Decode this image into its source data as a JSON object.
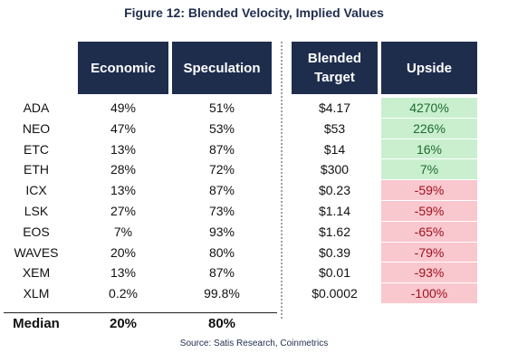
{
  "title": "Figure 12: Blended Velocity, Implied Values",
  "headers": {
    "economic": "Economic",
    "speculation": "Speculation",
    "blended_target_line1": "Blended",
    "blended_target_line2": "Target",
    "upside": "Upside"
  },
  "rows": [
    {
      "name": "ADA",
      "economic": "49%",
      "speculation": "51%",
      "target": "$4.17",
      "upside": "4270%",
      "sign": "pos"
    },
    {
      "name": "NEO",
      "economic": "47%",
      "speculation": "53%",
      "target": "$53",
      "upside": "226%",
      "sign": "pos"
    },
    {
      "name": "ETC",
      "economic": "13%",
      "speculation": "87%",
      "target": "$14",
      "upside": "16%",
      "sign": "pos"
    },
    {
      "name": "ETH",
      "economic": "28%",
      "speculation": "72%",
      "target": "$300",
      "upside": "7%",
      "sign": "pos"
    },
    {
      "name": "ICX",
      "economic": "13%",
      "speculation": "87%",
      "target": "$0.23",
      "upside": "-59%",
      "sign": "neg"
    },
    {
      "name": "LSK",
      "economic": "27%",
      "speculation": "73%",
      "target": "$1.14",
      "upside": "-59%",
      "sign": "neg"
    },
    {
      "name": "EOS",
      "economic": "7%",
      "speculation": "93%",
      "target": "$1.62",
      "upside": "-65%",
      "sign": "neg"
    },
    {
      "name": "WAVES",
      "economic": "20%",
      "speculation": "80%",
      "target": "$0.39",
      "upside": "-79%",
      "sign": "neg"
    },
    {
      "name": "XEM",
      "economic": "13%",
      "speculation": "87%",
      "target": "$0.01",
      "upside": "-93%",
      "sign": "neg"
    },
    {
      "name": "XLM",
      "economic": "0.2%",
      "speculation": "99.8%",
      "target": "$0.0002",
      "upside": "-100%",
      "sign": "neg"
    }
  ],
  "median": {
    "label": "Median",
    "economic": "20%",
    "speculation": "80%"
  },
  "source": "Source: Satis Research, Coinmetrics",
  "colors": {
    "header_bg": "#1f2d4d",
    "positive_bg": "#c9efcf",
    "negative_bg": "#f9c7ce"
  }
}
